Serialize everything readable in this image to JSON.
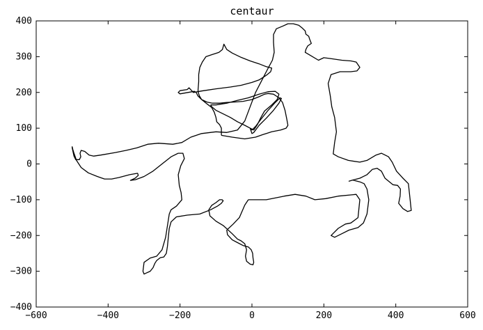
{
  "chart_data": {
    "type": "line",
    "title": "centaur",
    "xlabel": "",
    "ylabel": "",
    "xlim": [
      -600,
      600
    ],
    "ylim": [
      -400,
      400
    ],
    "x_ticks": [
      -600,
      -400,
      -200,
      0,
      200,
      400,
      600
    ],
    "y_ticks": [
      -400,
      -300,
      -200,
      -100,
      0,
      100,
      200,
      300,
      400
    ],
    "x_tick_labels": [
      "−600",
      "−400",
      "−200",
      "0",
      "200",
      "400",
      "600"
    ],
    "y_tick_labels": [
      "−400",
      "−300",
      "−200",
      "−100",
      "0",
      "100",
      "200",
      "300",
      "400"
    ],
    "grid": false,
    "line_color": "#000000",
    "series": [
      {
        "points": [
          [
            -10,
            -100
          ],
          [
            40,
            -100
          ],
          [
            90,
            -90
          ],
          [
            120,
            -85
          ],
          [
            150,
            -90
          ],
          [
            175,
            -100
          ],
          [
            205,
            -97
          ],
          [
            240,
            -90
          ],
          [
            290,
            -85
          ],
          [
            300,
            -100
          ],
          [
            295,
            -150
          ],
          [
            275,
            -165
          ],
          [
            260,
            -168
          ],
          [
            240,
            -180
          ],
          [
            225,
            -195
          ],
          [
            220,
            -200
          ],
          [
            230,
            -205
          ],
          [
            250,
            -195
          ],
          [
            270,
            -185
          ],
          [
            295,
            -178
          ],
          [
            310,
            -165
          ],
          [
            320,
            -140
          ],
          [
            325,
            -100
          ],
          [
            320,
            -70
          ],
          [
            312,
            -55
          ],
          [
            300,
            -50
          ],
          [
            280,
            -45
          ],
          [
            270,
            -48
          ],
          [
            280,
            -45
          ],
          [
            300,
            -40
          ],
          [
            320,
            -30
          ],
          [
            335,
            -15
          ],
          [
            348,
            -12
          ],
          [
            360,
            -20
          ],
          [
            370,
            -40
          ],
          [
            392,
            -58
          ],
          [
            405,
            -60
          ],
          [
            413,
            -70
          ],
          [
            412,
            -90
          ],
          [
            408,
            -110
          ],
          [
            420,
            -125
          ],
          [
            433,
            -133
          ],
          [
            443,
            -130
          ],
          [
            440,
            -100
          ],
          [
            435,
            -55
          ],
          [
            420,
            -40
          ],
          [
            402,
            -20
          ],
          [
            390,
            5
          ],
          [
            380,
            20
          ],
          [
            360,
            30
          ],
          [
            345,
            25
          ],
          [
            320,
            10
          ],
          [
            300,
            5
          ],
          [
            268,
            10
          ],
          [
            240,
            20
          ],
          [
            226,
            28
          ],
          [
            230,
            60
          ],
          [
            235,
            90
          ],
          [
            230,
            130
          ],
          [
            222,
            160
          ],
          [
            218,
            190
          ],
          [
            212,
            225
          ],
          [
            220,
            250
          ],
          [
            245,
            258
          ],
          [
            275,
            258
          ],
          [
            292,
            260
          ],
          [
            300,
            270
          ],
          [
            290,
            285
          ],
          [
            275,
            288
          ],
          [
            250,
            290
          ],
          [
            215,
            295
          ],
          [
            200,
            297
          ],
          [
            185,
            290
          ],
          [
            160,
            305
          ],
          [
            148,
            312
          ],
          [
            150,
            320
          ],
          [
            155,
            330
          ],
          [
            165,
            337
          ],
          [
            160,
            350
          ],
          [
            158,
            357
          ],
          [
            150,
            363
          ],
          [
            148,
            372
          ],
          [
            140,
            380
          ],
          [
            130,
            388
          ],
          [
            115,
            392
          ],
          [
            100,
            392
          ],
          [
            85,
            385
          ],
          [
            68,
            378
          ],
          [
            60,
            362
          ],
          [
            60,
            340
          ],
          [
            62,
            312
          ],
          [
            57,
            290
          ],
          [
            45,
            268
          ],
          [
            28,
            235
          ],
          [
            10,
            200
          ],
          [
            -5,
            160
          ],
          [
            -20,
            120
          ],
          [
            -40,
            95
          ],
          [
            -70,
            88
          ],
          [
            -100,
            90
          ],
          [
            -140,
            85
          ],
          [
            -170,
            75
          ],
          [
            -195,
            60
          ],
          [
            -220,
            55
          ],
          [
            -260,
            58
          ],
          [
            -290,
            55
          ],
          [
            -320,
            45
          ],
          [
            -350,
            38
          ],
          [
            -380,
            32
          ],
          [
            -420,
            25
          ],
          [
            -440,
            22
          ],
          [
            -453,
            25
          ],
          [
            -465,
            35
          ],
          [
            -475,
            38
          ],
          [
            -478,
            30
          ],
          [
            -476,
            20
          ],
          [
            -480,
            12
          ],
          [
            -490,
            12
          ],
          [
            -495,
            22
          ],
          [
            -500,
            45
          ],
          [
            -500,
            48
          ],
          [
            -498,
            40
          ],
          [
            -495,
            30
          ],
          [
            -488,
            10
          ],
          [
            -475,
            -10
          ],
          [
            -455,
            -25
          ],
          [
            -430,
            -35
          ],
          [
            -410,
            -42
          ],
          [
            -390,
            -42
          ],
          [
            -370,
            -38
          ],
          [
            -340,
            -30
          ],
          [
            -318,
            -26
          ],
          [
            -316,
            -32
          ],
          [
            -325,
            -40
          ],
          [
            -338,
            -46
          ],
          [
            -324,
            -44
          ],
          [
            -300,
            -35
          ],
          [
            -275,
            -20
          ],
          [
            -250,
            0
          ],
          [
            -225,
            20
          ],
          [
            -205,
            30
          ],
          [
            -192,
            30
          ],
          [
            -188,
            15
          ],
          [
            -198,
            -5
          ],
          [
            -205,
            -30
          ],
          [
            -202,
            -60
          ],
          [
            -197,
            -80
          ],
          [
            -195,
            -100
          ],
          [
            -210,
            -118
          ],
          [
            -225,
            -128
          ],
          [
            -230,
            -140
          ],
          [
            -233,
            -160
          ],
          [
            -240,
            -205
          ],
          [
            -250,
            -240
          ],
          [
            -265,
            -258
          ],
          [
            -283,
            -263
          ],
          [
            -300,
            -275
          ],
          [
            -303,
            -300
          ],
          [
            -300,
            -308
          ],
          [
            -294,
            -305
          ],
          [
            -283,
            -300
          ],
          [
            -275,
            -290
          ],
          [
            -270,
            -278
          ],
          [
            -265,
            -270
          ],
          [
            -255,
            -262
          ],
          [
            -245,
            -260
          ],
          [
            -238,
            -250
          ],
          [
            -235,
            -230
          ],
          [
            -232,
            -200
          ],
          [
            -230,
            -180
          ],
          [
            -225,
            -162
          ],
          [
            -210,
            -148
          ],
          [
            -180,
            -143
          ],
          [
            -145,
            -140
          ],
          [
            -115,
            -128
          ],
          [
            -96,
            -118
          ],
          [
            -85,
            -110
          ],
          [
            -80,
            -103
          ],
          [
            -83,
            -100
          ],
          [
            -90,
            -100
          ],
          [
            -100,
            -108
          ],
          [
            -112,
            -116
          ],
          [
            -120,
            -128
          ],
          [
            -117,
            -145
          ],
          [
            -100,
            -160
          ],
          [
            -80,
            -172
          ],
          [
            -55,
            -195
          ],
          [
            -40,
            -210
          ],
          [
            -30,
            -215
          ],
          [
            -20,
            -223
          ],
          [
            -15,
            -240
          ],
          [
            -18,
            -258
          ],
          [
            -15,
            -272
          ],
          [
            -5,
            -280
          ],
          [
            3,
            -282
          ],
          [
            5,
            -275
          ],
          [
            3,
            -262
          ],
          [
            2,
            -250
          ],
          [
            -2,
            -240
          ],
          [
            -10,
            -232
          ],
          [
            -25,
            -228
          ],
          [
            -40,
            -220
          ],
          [
            -55,
            -212
          ],
          [
            -68,
            -198
          ],
          [
            -70,
            -185
          ],
          [
            -52,
            -168
          ],
          [
            -35,
            -150
          ],
          [
            -20,
            -115
          ],
          [
            -10,
            -100
          ]
        ]
      },
      {
        "points": [
          [
            -85,
            80
          ],
          [
            -55,
            75
          ],
          [
            -20,
            70
          ],
          [
            10,
            75
          ],
          [
            30,
            82
          ],
          [
            55,
            90
          ],
          [
            80,
            95
          ],
          [
            95,
            100
          ],
          [
            100,
            108
          ],
          [
            97,
            125
          ],
          [
            92,
            150
          ],
          [
            85,
            172
          ],
          [
            75,
            185
          ],
          [
            60,
            195
          ],
          [
            45,
            197
          ],
          [
            35,
            195
          ],
          [
            20,
            188
          ],
          [
            0,
            180
          ],
          [
            -25,
            175
          ],
          [
            -50,
            173
          ],
          [
            -70,
            172
          ],
          [
            -90,
            170
          ],
          [
            -110,
            170
          ],
          [
            -125,
            173
          ],
          [
            -140,
            180
          ],
          [
            -150,
            190
          ],
          [
            -155,
            200
          ],
          [
            -160,
            203
          ],
          [
            -178,
            200
          ],
          [
            -200,
            196
          ],
          [
            -205,
            200
          ],
          [
            -200,
            205
          ],
          [
            -180,
            208
          ],
          [
            -175,
            213
          ],
          [
            -163,
            200
          ],
          [
            -140,
            204
          ],
          [
            -100,
            210
          ],
          [
            -60,
            215
          ],
          [
            -30,
            220
          ],
          [
            0,
            228
          ],
          [
            20,
            235
          ],
          [
            40,
            248
          ],
          [
            52,
            258
          ],
          [
            55,
            268
          ],
          [
            40,
            272
          ],
          [
            20,
            280
          ],
          [
            -5,
            288
          ],
          [
            -30,
            298
          ],
          [
            -55,
            310
          ],
          [
            -70,
            320
          ],
          [
            -78,
            335
          ],
          [
            -82,
            320
          ],
          [
            -92,
            312
          ],
          [
            -110,
            306
          ],
          [
            -128,
            300
          ],
          [
            -138,
            285
          ],
          [
            -145,
            270
          ],
          [
            -148,
            250
          ],
          [
            -148,
            230
          ],
          [
            -150,
            205
          ],
          [
            -148,
            196
          ],
          [
            -146,
            190
          ],
          [
            -140,
            180
          ],
          [
            -125,
            168
          ],
          [
            -112,
            158
          ],
          [
            -105,
            145
          ],
          [
            -100,
            130
          ],
          [
            -98,
            118
          ],
          [
            -90,
            110
          ],
          [
            -85,
            100
          ],
          [
            -85,
            80
          ]
        ]
      },
      {
        "points": [
          [
            -115,
            165
          ],
          [
            -100,
            165
          ],
          [
            -70,
            170
          ],
          [
            -40,
            178
          ],
          [
            -10,
            185
          ],
          [
            20,
            195
          ],
          [
            45,
            202
          ],
          [
            65,
            203
          ],
          [
            75,
            195
          ],
          [
            70,
            180
          ],
          [
            55,
            165
          ],
          [
            35,
            148
          ],
          [
            25,
            130
          ],
          [
            15,
            110
          ],
          [
            5,
            95
          ],
          [
            -5,
            100
          ],
          [
            -20,
            108
          ],
          [
            -40,
            118
          ],
          [
            -60,
            130
          ],
          [
            -80,
            140
          ],
          [
            -100,
            150
          ],
          [
            -112,
            160
          ],
          [
            -115,
            165
          ]
        ]
      },
      {
        "points": [
          [
            -5,
            100
          ],
          [
            0,
            95
          ],
          [
            10,
            105
          ],
          [
            25,
            125
          ],
          [
            45,
            150
          ],
          [
            65,
            172
          ],
          [
            78,
            185
          ],
          [
            82,
            183
          ],
          [
            75,
            170
          ],
          [
            60,
            150
          ],
          [
            40,
            128
          ],
          [
            20,
            108
          ],
          [
            5,
            88
          ],
          [
            0,
            85
          ],
          [
            -5,
            100
          ]
        ]
      }
    ]
  }
}
